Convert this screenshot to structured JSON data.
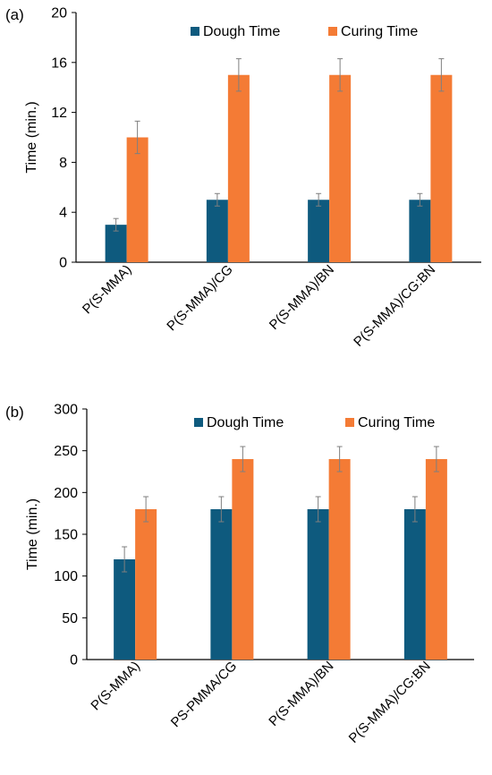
{
  "colors": {
    "dough": "#0e5a7e",
    "curing": "#f47b35",
    "axis": "#000000",
    "errorbar": "#7f7f7f"
  },
  "charts": [
    {
      "panel_label": "(a)",
      "type": "bar",
      "ylabel": "Time (min.)",
      "yticks": [
        "0",
        "4",
        "8",
        "12",
        "16",
        "20"
      ],
      "legend": [
        "Dough Time",
        "Curing Time"
      ]
    },
    {
      "panel_label": "(b)",
      "type": "bar",
      "ylabel": "Time (min.)",
      "yticks": [
        "0",
        "50",
        "100",
        "150",
        "200",
        "250",
        "300"
      ],
      "legend": [
        "Dough Time",
        "Curing Time"
      ]
    }
  ],
  "chart_data": [
    {
      "type": "bar",
      "title": "",
      "xlabel": "",
      "ylabel": "Time (min.)",
      "ylim": [
        0,
        20
      ],
      "categories": [
        "P(S-MMA)",
        "P(S-MMA)/CG",
        "P(S-MMA)/BN",
        "P(S-MMA)/CG:BN"
      ],
      "series": [
        {
          "name": "Dough Time",
          "values": [
            3,
            5,
            5,
            5
          ],
          "errors": [
            0.5,
            0.5,
            0.5,
            0.5
          ]
        },
        {
          "name": "Curing Time",
          "values": [
            10,
            15,
            15,
            15
          ],
          "errors": [
            1.3,
            1.3,
            1.3,
            1.3
          ]
        }
      ],
      "grid": false,
      "legend_position": "top"
    },
    {
      "type": "bar",
      "title": "",
      "xlabel": "",
      "ylabel": "Time (min.)",
      "ylim": [
        0,
        300
      ],
      "categories": [
        "P(S-MMA)",
        "PS-PMMA/CG",
        "P(S-MMA)/BN",
        "P(S-MMA)/CG:BN"
      ],
      "series": [
        {
          "name": "Dough Time",
          "values": [
            120,
            180,
            180,
            180
          ],
          "errors": [
            15,
            15,
            15,
            15
          ]
        },
        {
          "name": "Curing Time",
          "values": [
            180,
            240,
            240,
            240
          ],
          "errors": [
            15,
            15,
            15,
            15
          ]
        }
      ],
      "grid": false,
      "legend_position": "top"
    }
  ]
}
